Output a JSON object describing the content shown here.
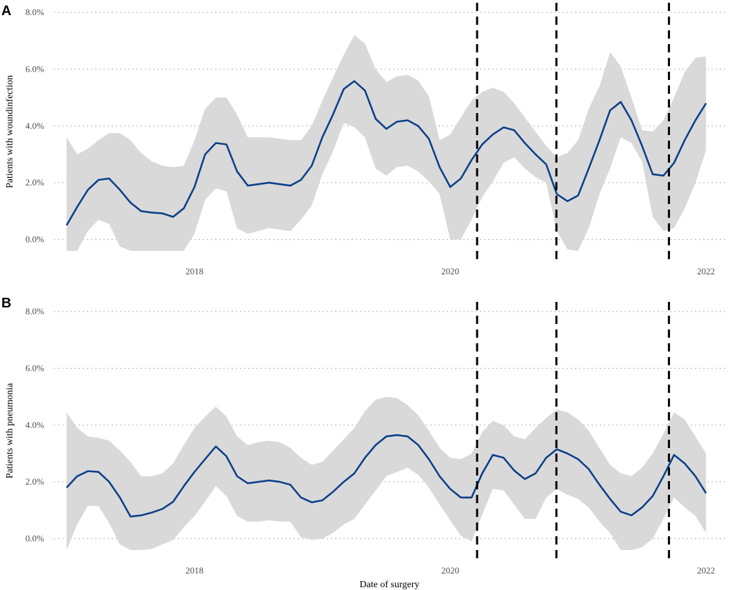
{
  "colors": {
    "line": "#0b3f8a",
    "ribbon": "#d9d9d9",
    "grid": "#bdbdbd",
    "vline": "#000000"
  },
  "figure": {
    "xlabel": "Date of surgery"
  },
  "chart_data": [
    {
      "type": "line",
      "panel_label": "A",
      "ylabel": "Patients with woundinfection",
      "xlabel": "",
      "ylim": [
        -0.4,
        8.0
      ],
      "xlim": [
        2016.9,
        2022.15
      ],
      "y_ticks": [
        0,
        2,
        4,
        6,
        8
      ],
      "y_tick_labels": [
        "0.0%",
        "2.0%",
        "4.0%",
        "6.0%",
        "8.0%"
      ],
      "x_ticks": [
        2018,
        2020,
        2022
      ],
      "x_tick_labels": [
        "2018",
        "2020",
        "2022"
      ],
      "grid": "horizontal dotted",
      "vertical_lines_x": [
        2020.21,
        2020.83,
        2021.71
      ],
      "series": [
        {
          "x": [
            2017.0,
            2017.083,
            2017.167,
            2017.25,
            2017.333,
            2017.417,
            2017.5,
            2017.583,
            2017.667,
            2017.75,
            2017.833,
            2017.917,
            2018.0,
            2018.083,
            2018.167,
            2018.25,
            2018.333,
            2018.417,
            2018.5,
            2018.583,
            2018.667,
            2018.75,
            2018.833,
            2018.917,
            2019.0,
            2019.083,
            2019.167,
            2019.25,
            2019.333,
            2019.417,
            2019.5,
            2019.583,
            2019.667,
            2019.75,
            2019.833,
            2019.917,
            2020.0,
            2020.083,
            2020.167,
            2020.25,
            2020.333,
            2020.417,
            2020.5,
            2020.583,
            2020.667,
            2020.75,
            2020.833,
            2020.917,
            2021.0,
            2021.083,
            2021.167,
            2021.25,
            2021.333,
            2021.417,
            2021.5,
            2021.583,
            2021.667,
            2021.75,
            2021.833,
            2021.917,
            2022.0
          ],
          "y": [
            0.5,
            1.15,
            1.75,
            2.1,
            2.15,
            1.75,
            1.3,
            1.0,
            0.95,
            0.92,
            0.8,
            1.1,
            1.85,
            3.0,
            3.4,
            3.35,
            2.4,
            1.9,
            1.95,
            2.0,
            1.95,
            1.9,
            2.1,
            2.6,
            3.6,
            4.4,
            5.3,
            5.58,
            5.25,
            4.25,
            3.9,
            4.15,
            4.2,
            4.0,
            3.55,
            2.55,
            1.85,
            2.15,
            2.8,
            3.35,
            3.7,
            3.95,
            3.85,
            3.4,
            3.0,
            2.65,
            1.6,
            1.35,
            1.55,
            2.5,
            3.5,
            4.55,
            4.85,
            4.2,
            3.3,
            2.3,
            2.25,
            2.7,
            3.5,
            4.2,
            4.8
          ],
          "upper": [
            3.6,
            3.0,
            3.2,
            3.5,
            3.75,
            3.75,
            3.5,
            3.05,
            2.75,
            2.6,
            2.55,
            2.6,
            3.5,
            4.6,
            5.0,
            5.0,
            4.4,
            3.6,
            3.6,
            3.6,
            3.55,
            3.5,
            3.5,
            4.0,
            4.9,
            5.7,
            6.5,
            7.2,
            6.9,
            6.0,
            5.55,
            5.75,
            5.8,
            5.6,
            5.05,
            3.5,
            3.7,
            4.3,
            4.9,
            5.2,
            5.35,
            5.2,
            4.8,
            4.3,
            3.8,
            3.3,
            2.9,
            3.05,
            3.5,
            4.6,
            5.4,
            6.6,
            6.1,
            5.0,
            3.85,
            3.8,
            4.2,
            5.0,
            5.9,
            6.4,
            6.45
          ]
        }
      ]
    },
    {
      "type": "line",
      "panel_label": "B",
      "ylabel": "Patients with pneumonia",
      "xlabel": "Date of surgery",
      "ylim": [
        -0.4,
        8.0
      ],
      "xlim": [
        2016.9,
        2022.15
      ],
      "y_ticks": [
        0,
        2,
        4,
        6,
        8
      ],
      "y_tick_labels": [
        "0.0%",
        "2.0%",
        "4.0%",
        "6.0%",
        "8.0%"
      ],
      "x_ticks": [
        2018,
        2020,
        2022
      ],
      "x_tick_labels": [
        "2018",
        "2020",
        "2022"
      ],
      "grid": "horizontal dotted",
      "vertical_lines_x": [
        2020.21,
        2020.83,
        2021.71
      ],
      "series": [
        {
          "x": [
            2017.0,
            2017.083,
            2017.167,
            2017.25,
            2017.333,
            2017.417,
            2017.5,
            2017.583,
            2017.667,
            2017.75,
            2017.833,
            2017.917,
            2018.0,
            2018.083,
            2018.167,
            2018.25,
            2018.333,
            2018.417,
            2018.5,
            2018.583,
            2018.667,
            2018.75,
            2018.833,
            2018.917,
            2019.0,
            2019.083,
            2019.167,
            2019.25,
            2019.333,
            2019.417,
            2019.5,
            2019.583,
            2019.667,
            2019.75,
            2019.833,
            2019.917,
            2020.0,
            2020.083,
            2020.167,
            2020.25,
            2020.333,
            2020.417,
            2020.5,
            2020.583,
            2020.667,
            2020.75,
            2020.833,
            2020.917,
            2021.0,
            2021.083,
            2021.167,
            2021.25,
            2021.333,
            2021.417,
            2021.5,
            2021.583,
            2021.667,
            2021.75,
            2021.833,
            2021.917,
            2022.0
          ],
          "y": [
            1.8,
            2.2,
            2.38,
            2.35,
            2.0,
            1.45,
            0.78,
            0.82,
            0.92,
            1.05,
            1.3,
            1.85,
            2.35,
            2.8,
            3.25,
            2.9,
            2.2,
            1.95,
            2.0,
            2.05,
            2.0,
            1.9,
            1.45,
            1.28,
            1.35,
            1.65,
            2.0,
            2.3,
            2.85,
            3.3,
            3.6,
            3.65,
            3.6,
            3.3,
            2.8,
            2.2,
            1.75,
            1.45,
            1.45,
            2.3,
            2.95,
            2.85,
            2.4,
            2.1,
            2.3,
            2.85,
            3.15,
            3.0,
            2.8,
            2.45,
            1.9,
            1.4,
            0.95,
            0.82,
            1.1,
            1.5,
            2.2,
            2.95,
            2.65,
            2.2,
            1.6
          ],
          "upper": [
            4.45,
            3.9,
            3.6,
            3.55,
            3.45,
            3.1,
            2.7,
            2.2,
            2.2,
            2.3,
            2.65,
            3.3,
            3.9,
            4.3,
            4.65,
            4.3,
            3.6,
            3.3,
            3.4,
            3.45,
            3.4,
            3.2,
            2.85,
            2.6,
            2.7,
            3.1,
            3.5,
            3.9,
            4.5,
            4.9,
            5.0,
            4.95,
            4.7,
            4.35,
            3.8,
            3.2,
            2.85,
            2.8,
            3.0,
            3.75,
            4.15,
            4.0,
            3.6,
            3.5,
            3.9,
            4.25,
            4.55,
            4.45,
            4.2,
            3.8,
            3.2,
            2.6,
            2.3,
            2.2,
            2.5,
            3.0,
            3.7,
            4.45,
            4.2,
            3.6,
            3.0
          ]
        }
      ]
    }
  ]
}
